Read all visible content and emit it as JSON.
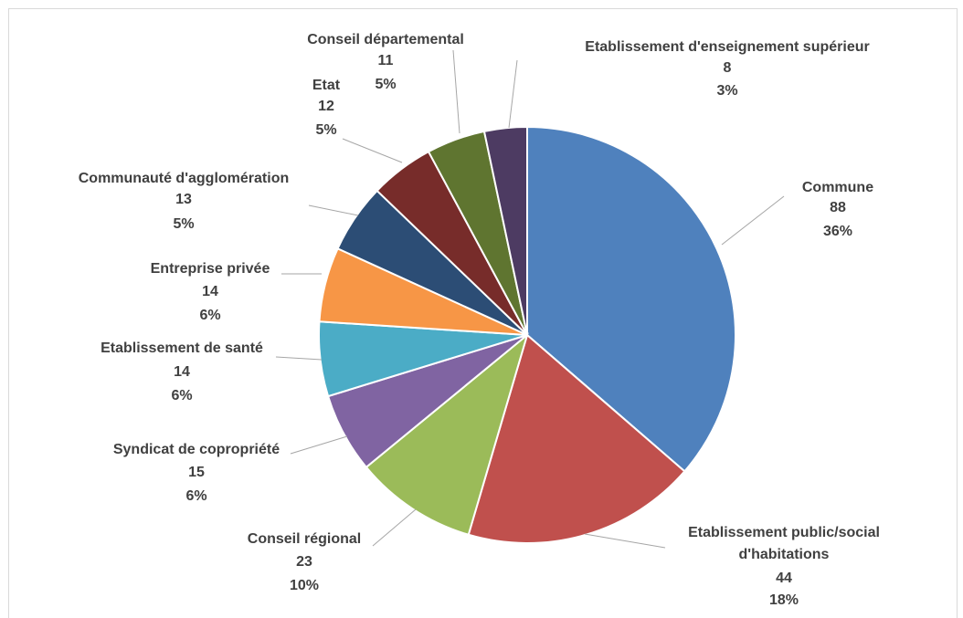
{
  "chart_data": {
    "type": "pie",
    "title": "",
    "slices": [
      {
        "label": "Commune",
        "value": 88,
        "percent": "36%",
        "color": "#4f81bd"
      },
      {
        "label": "Etablissement public/social d'habitations",
        "value": 44,
        "percent": "18%",
        "color": "#c0504d"
      },
      {
        "label": "Conseil régional",
        "value": 23,
        "percent": "10%",
        "color": "#9bbb59"
      },
      {
        "label": "Syndicat de copropriété",
        "value": 15,
        "percent": "6%",
        "color": "#8064a2"
      },
      {
        "label": "Etablissement de santé",
        "value": 14,
        "percent": "6%",
        "color": "#4bacc6"
      },
      {
        "label": "Entreprise privée",
        "value": 14,
        "percent": "6%",
        "color": "#f79646"
      },
      {
        "label": "Communauté d'agglomération",
        "value": 13,
        "percent": "5%",
        "color": "#2c4d75"
      },
      {
        "label": "Etat",
        "value": 12,
        "percent": "5%",
        "color": "#772c2a"
      },
      {
        "label": "Conseil départemental",
        "value": 11,
        "percent": "5%",
        "color": "#5f7530"
      },
      {
        "label": "Etablissement d'enseignement supérieur",
        "value": 8,
        "percent": "3%",
        "color": "#4d3b62"
      }
    ],
    "legend": "none",
    "data_labels": "outside-with-leader-lines"
  }
}
